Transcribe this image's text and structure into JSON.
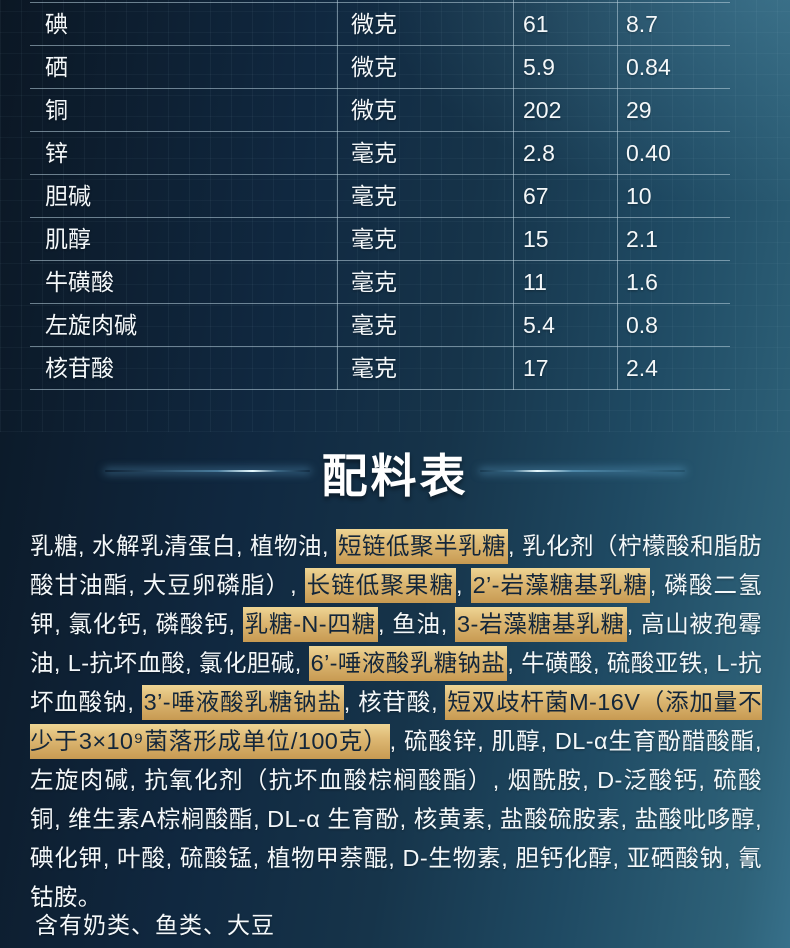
{
  "nutrition_table": {
    "rows": [
      [
        "碘",
        "微克",
        "61",
        "8.7"
      ],
      [
        "硒",
        "微克",
        "5.9",
        "0.84"
      ],
      [
        "铜",
        "微克",
        "202",
        "29"
      ],
      [
        "锌",
        "毫克",
        "2.8",
        "0.40"
      ],
      [
        "胆碱",
        "毫克",
        "67",
        "10"
      ],
      [
        "肌醇",
        "毫克",
        "15",
        "2.1"
      ],
      [
        "牛磺酸",
        "毫克",
        "11",
        "1.6"
      ],
      [
        "左旋肉碱",
        "毫克",
        "5.4",
        "0.8"
      ],
      [
        "核苷酸",
        "毫克",
        "17",
        "2.4"
      ]
    ]
  },
  "section": {
    "title": "配料表"
  },
  "ingredients_segments": [
    {
      "text": "乳糖, 水解乳清蛋白, 植物油, ",
      "hl": false
    },
    {
      "text": "短链低聚半乳糖",
      "hl": true
    },
    {
      "text": ", 乳化剂（柠檬酸和脂肪酸甘油酯, 大豆卵磷脂）, ",
      "hl": false
    },
    {
      "text": "长链低聚果糖",
      "hl": true
    },
    {
      "text": ", ",
      "hl": false
    },
    {
      "text": "2’-岩藻糖基乳糖",
      "hl": true
    },
    {
      "text": ", 磷酸二氢钾, 氯化钙, 磷酸钙, ",
      "hl": false
    },
    {
      "text": "乳糖-N-四糖",
      "hl": true
    },
    {
      "text": ", 鱼油, ",
      "hl": false
    },
    {
      "text": "3-岩藻糖基乳糖",
      "hl": true
    },
    {
      "text": ", 高山被孢霉油, L-抗坏血酸, 氯化胆碱, ",
      "hl": false
    },
    {
      "text": "6’-唾液酸乳糖钠盐",
      "hl": true
    },
    {
      "text": ", 牛磺酸, 硫酸亚铁, L-抗坏血酸钠, ",
      "hl": false
    },
    {
      "text": "3’-唾液酸乳糖钠盐",
      "hl": true
    },
    {
      "text": ", 核苷酸, ",
      "hl": false
    },
    {
      "text": "短双歧杆菌M-16V（添加量不少于3×10⁹菌落形成单位/100克）",
      "hl": true
    },
    {
      "text": ", 硫酸锌, 肌醇, DL-α生育酚醋酸酯, 左旋肉碱, 抗氧化剂（抗坏血酸棕榈酸酯）, 烟酰胺, D-泛酸钙, 硫酸铜, 维生素A棕榈酸酯, DL-α 生育酚, 核黄素, 盐酸硫胺素, 盐酸吡哆醇, 碘化钾, 叶酸, 硫酸锰, 植物甲萘醌, D-生物素, 胆钙化醇, 亚硒酸钠, 氰钴胺。",
      "hl": false
    }
  ],
  "allergen_note": "含有奶类、鱼类、大豆",
  "colors": {
    "background_dark": "#0b1724",
    "background_mid": "#16344a",
    "background_light": "#2e6279",
    "table_line": "rgba(186,210,222,0.55)",
    "text": "#f4f8fa",
    "highlight_gold_top": "#eed594",
    "highlight_gold_mid": "#ddb873",
    "highlight_gold_bottom": "#c79a52",
    "highlight_text": "#13263a",
    "flare_blue": "#9adcff"
  }
}
